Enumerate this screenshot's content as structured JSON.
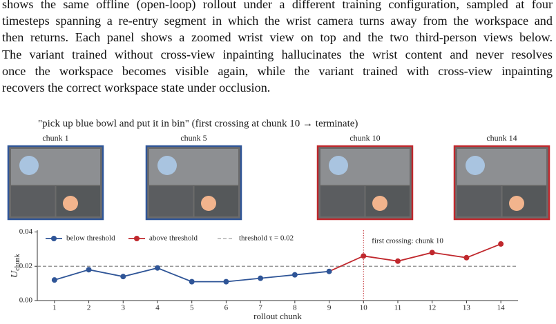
{
  "text": {
    "lines": [
      "shows the same offline (open-loop) rollout under a different training configuration, sampled at four",
      "timesteps spanning a re-entry segment in which the wrist camera turns away from the workspace and",
      "then returns. Each panel shows a zoomed wrist view on top and the two third-person views below.",
      "The variant trained without cross-view inpainting hallucinates the wrist content and never resolves",
      "once the workspace becomes visible again, while the variant trained with cross-view inpainting",
      "recovers the correct workspace state under occlusion."
    ]
  },
  "figure": {
    "title": "\"pick up blue bowl and put it in bin\" (first crossing at chunk 10 → terminate)",
    "panels": [
      {
        "label": "chunk 1",
        "color": "#2f5597"
      },
      {
        "label": "chunk 5",
        "color": "#2f5597"
      },
      {
        "label": "chunk 10",
        "color": "#c0282d"
      },
      {
        "label": "chunk 14",
        "color": "#c0282d"
      }
    ]
  },
  "chart_data": {
    "type": "line",
    "ylabel": {
      "main": "U",
      "sub": "chunk"
    },
    "xlabel": "rollout chunk",
    "x": [
      1,
      2,
      3,
      4,
      5,
      6,
      7,
      8,
      9,
      10,
      11,
      12,
      13,
      14
    ],
    "series": [
      {
        "name": "below threshold",
        "color": "#2f5597",
        "values": [
          0.012,
          0.018,
          0.014,
          0.019,
          0.011,
          0.011,
          0.013,
          0.015,
          0.017,
          null,
          null,
          null,
          null,
          null
        ]
      },
      {
        "name": "above threshold",
        "color": "#c0282d",
        "values": [
          null,
          null,
          null,
          null,
          null,
          null,
          null,
          null,
          null,
          0.026,
          0.023,
          0.028,
          0.025,
          0.033
        ]
      }
    ],
    "threshold": {
      "value": 0.02,
      "label": "threshold τ = 0.02",
      "color": "#888888"
    },
    "crossing": {
      "x": 10,
      "label": "first crossing: chunk 10",
      "color": "#c0282d"
    },
    "xlim": [
      0.5,
      14.5
    ],
    "ylim": [
      0,
      0.041
    ],
    "xticks": [
      1,
      2,
      3,
      4,
      5,
      6,
      7,
      8,
      9,
      10,
      11,
      12,
      13,
      14
    ],
    "yticks": [
      {
        "value": 0,
        "label": "0.00"
      },
      0.02,
      0.04
    ]
  }
}
